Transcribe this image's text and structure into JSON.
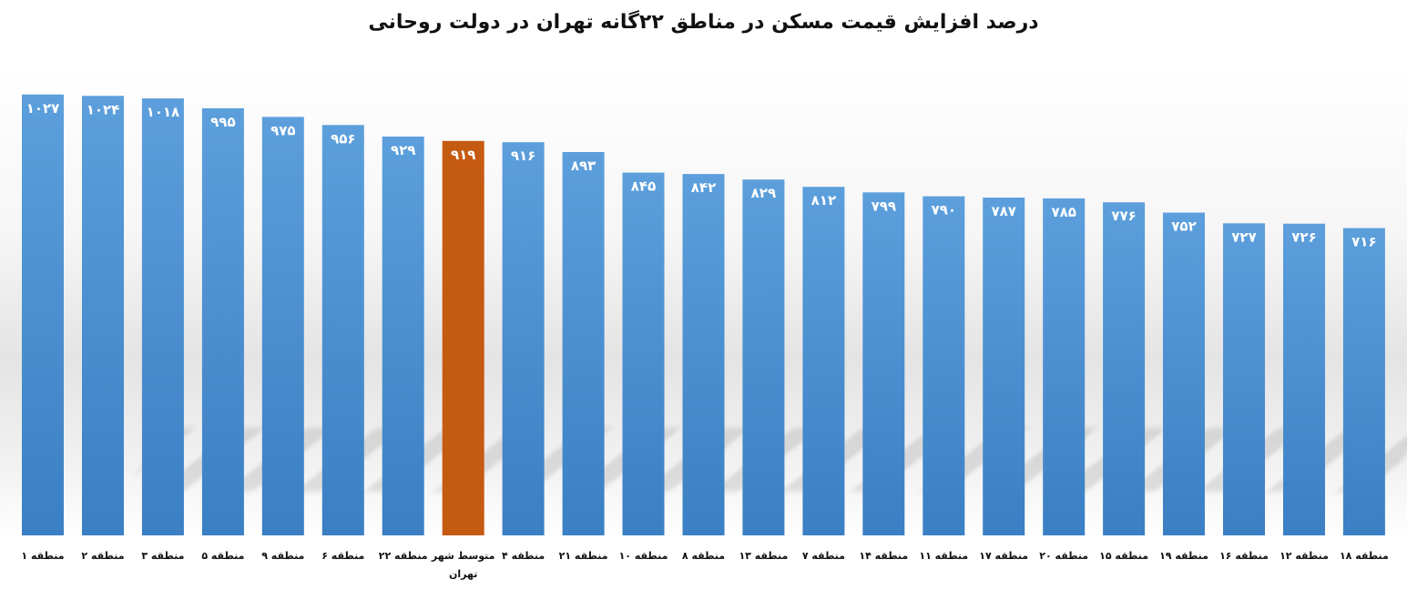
{
  "chart_data": {
    "type": "bar",
    "title": "درصد افزایش قیمت مسکن در مناطق ۲۲گانه تهران در دولت روحانی",
    "xlabel": "",
    "ylabel": "",
    "categories": [
      "منطقه ۱",
      "منطقه ۲",
      "منطقه ۳",
      "منطقه ۵",
      "منطقه ۹",
      "منطقه ۶",
      "منطقه ۲۲",
      "متوسط شهر تهران",
      "منطقه ۴",
      "منطقه ۲۱",
      "منطقه ۱۰",
      "منطقه ۸",
      "منطقه ۱۳",
      "منطقه ۷",
      "منطقه ۱۴",
      "منطقه ۱۱",
      "منطقه ۱۷",
      "منطقه ۲۰",
      "منطقه ۱۵",
      "منطقه ۱۹",
      "منطقه ۱۶",
      "منطقه ۱۲",
      "منطقه ۱۸"
    ],
    "values": [
      1027,
      1024,
      1018,
      995,
      975,
      956,
      929,
      919,
      916,
      893,
      845,
      842,
      829,
      812,
      799,
      790,
      787,
      785,
      776,
      752,
      727,
      726,
      716
    ],
    "value_labels": [
      "۱۰۲۷",
      "۱۰۲۴",
      "۱۰۱۸",
      "۹۹۵",
      "۹۷۵",
      "۹۵۶",
      "۹۲۹",
      "۹۱۹",
      "۹۱۶",
      "۸۹۳",
      "۸۴۵",
      "۸۴۲",
      "۸۲۹",
      "۸۱۲",
      "۷۹۹",
      "۷۹۰",
      "۷۸۷",
      "۷۸۵",
      "۷۷۶",
      "۷۵۲",
      "۷۲۷",
      "۷۲۶",
      "۷۱۶"
    ],
    "highlight_index": 7,
    "colors": {
      "bar": "#4f93d5",
      "bar_dark": "#3b7fc4",
      "highlight": "#c55a11"
    },
    "ylim": [
      0,
      1050
    ],
    "grid": false,
    "legend": "none"
  }
}
